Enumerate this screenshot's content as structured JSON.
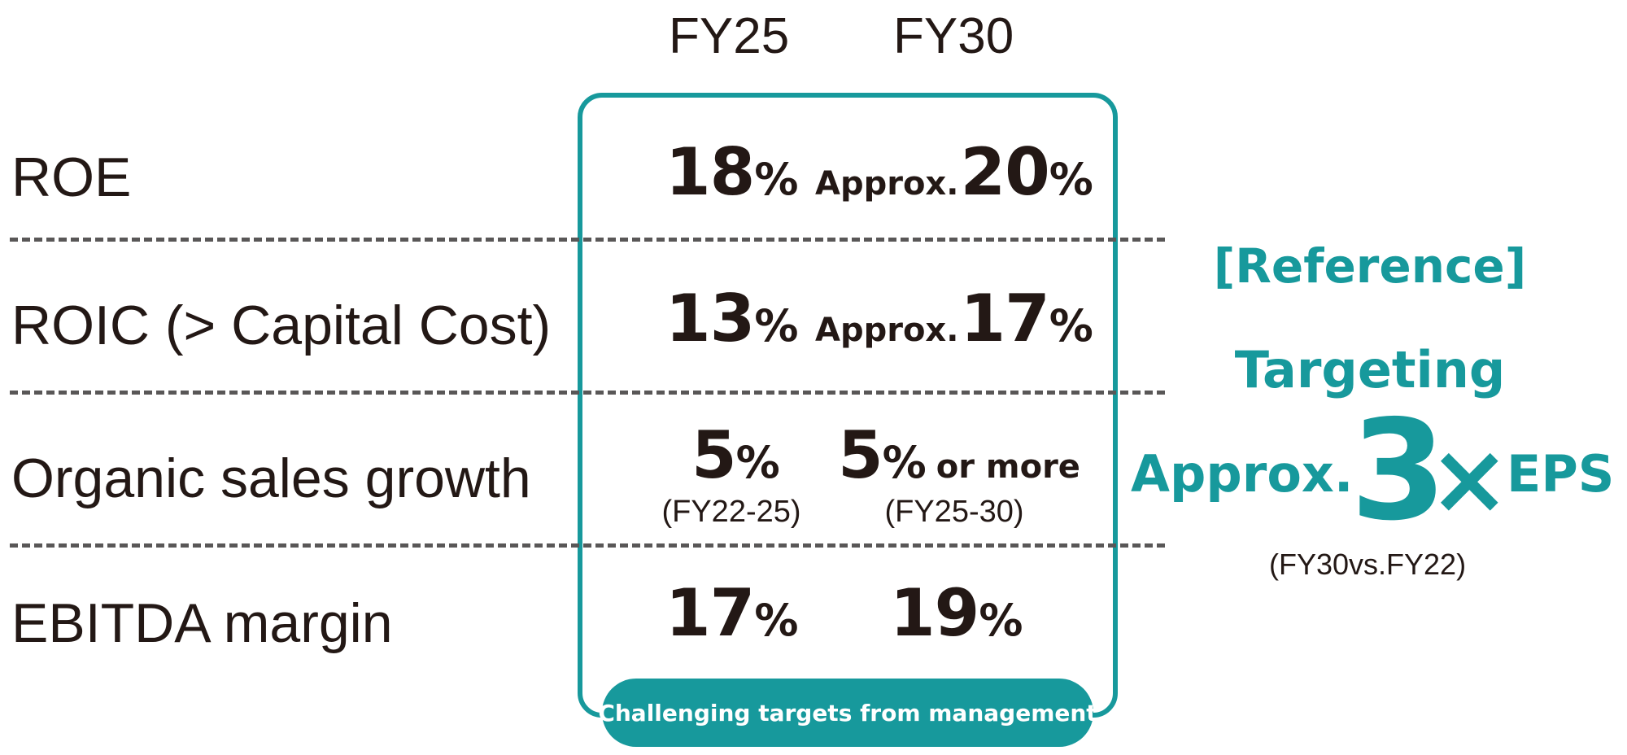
{
  "columns": {
    "fy25": "FY25",
    "fy30": "FY30"
  },
  "rows": [
    {
      "label": "ROE",
      "fy25": {
        "value": "18",
        "unit": "%"
      },
      "fy30": {
        "prefix": "Approx.",
        "value": "20",
        "unit": "%"
      }
    },
    {
      "label": "ROIC (> Capital Cost)",
      "fy25": {
        "value": "13",
        "unit": "%"
      },
      "fy30": {
        "prefix": "Approx.",
        "value": "17",
        "unit": "%"
      }
    },
    {
      "label": "Organic sales growth",
      "fy25": {
        "value": "5",
        "unit": "%",
        "period": "(FY22-25)"
      },
      "fy30": {
        "value": "5",
        "unit": "%",
        "suffix": "or more",
        "period": "(FY25-30)"
      }
    },
    {
      "label": "EBITDA margin",
      "fy25": {
        "value": "17",
        "unit": "%"
      },
      "fy30": {
        "value": "19",
        "unit": "%"
      }
    }
  ],
  "footer_pill": "Challenging targets from management",
  "reference": {
    "title": "[Reference]",
    "targeting": "Targeting",
    "approx": "Approx.",
    "multiple": "3",
    "times_symbol": "×",
    "metric": "EPS",
    "note": "(FY30vs.FY22)"
  },
  "colors": {
    "accent_teal": "#17999c",
    "text_dark": "#231815",
    "divider_gray": "#595757"
  }
}
